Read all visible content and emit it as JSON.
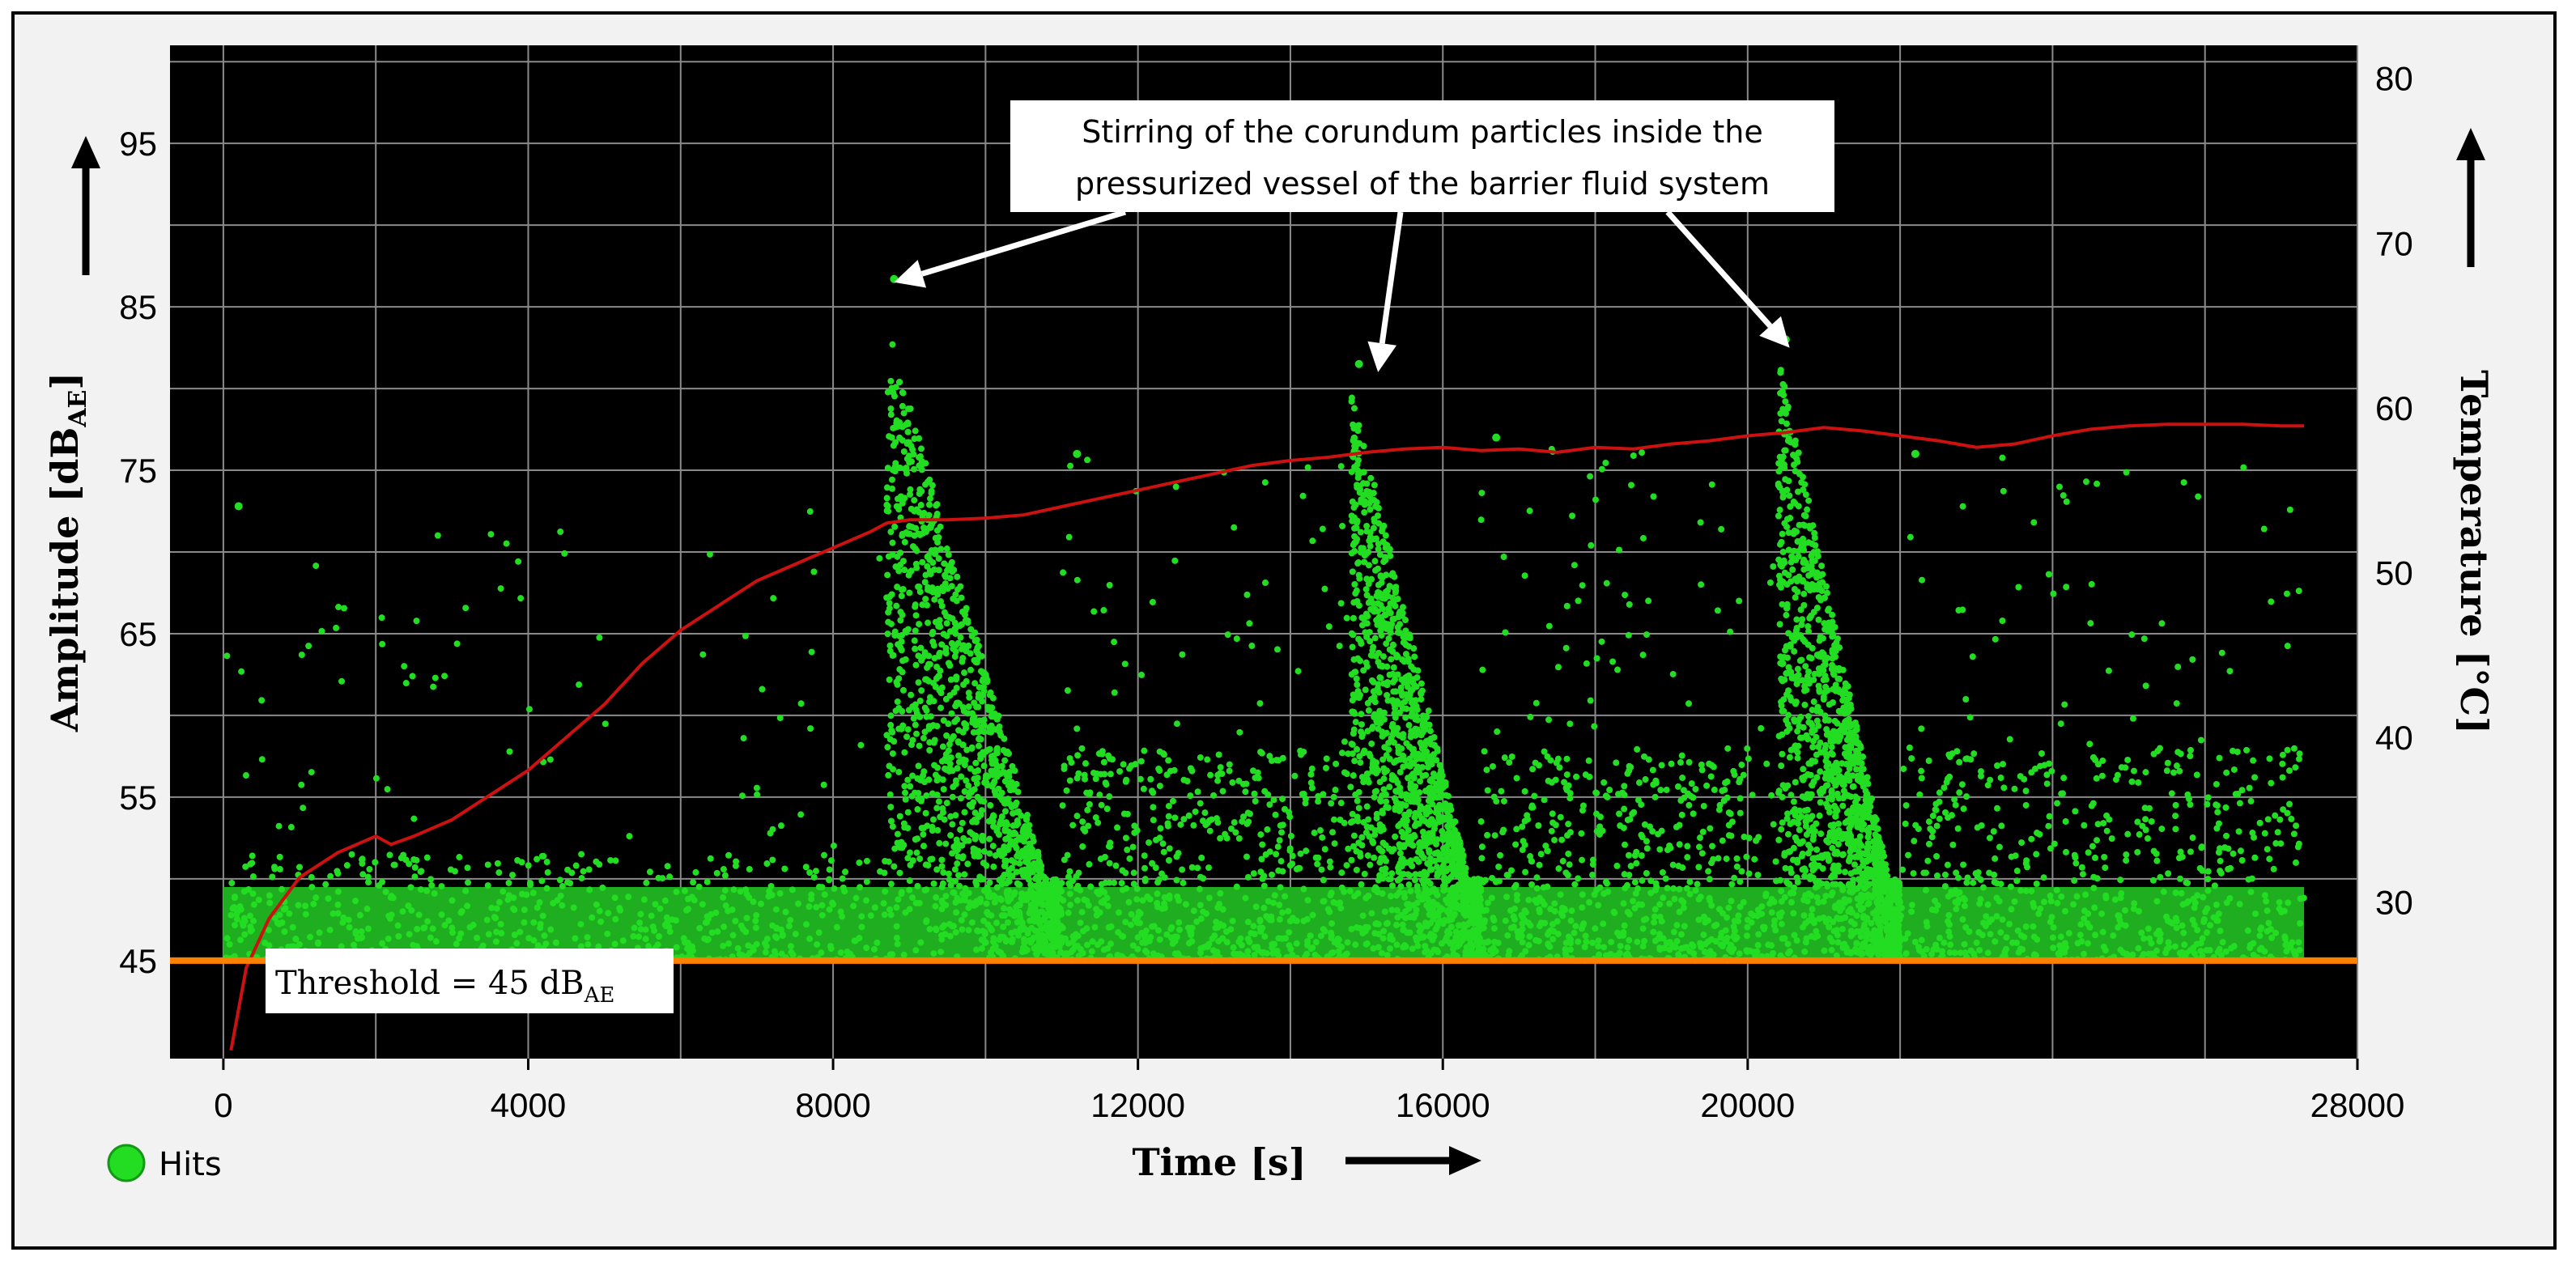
{
  "chart_data": {
    "type": "scatter",
    "xlabel": "Time [s]",
    "ylabel_left": "Amplitude [dB",
    "ylabel_left_sub": "AE",
    "ylabel_left_close": "]",
    "ylabel_right": "Temperature [°C]",
    "xlim": [
      -700,
      28000
    ],
    "ylim_left": [
      39,
      101
    ],
    "ylim_right": [
      20.5,
      82
    ],
    "x_ticks": [
      0,
      4000,
      8000,
      12000,
      16000,
      20000,
      28000
    ],
    "x_tick_labels": [
      "0",
      "4000",
      "8000",
      "12000",
      "16000",
      "20000",
      "28000"
    ],
    "y_left_ticks": [
      45,
      55,
      65,
      75,
      85,
      95
    ],
    "y_right_ticks": [
      30,
      40,
      50,
      60,
      70,
      80
    ],
    "grid": true,
    "threshold": {
      "value": 45,
      "label": "Threshold = 45 dB",
      "label_sub": "AE",
      "color": "#ff8000"
    },
    "hits_color": "#22dd22",
    "temperature_color": "#cc1111",
    "background": "#000000",
    "annotation": {
      "lines": [
        "Stirring of the corundum particles inside the",
        "pressurized vessel of the barrier fluid system"
      ],
      "arrow_targets": [
        [
          8800,
          86.5
        ],
        [
          15150,
          81
        ],
        [
          20550,
          82.5
        ]
      ]
    },
    "legend": [
      {
        "name": "Hits",
        "color": "#22dd22"
      }
    ],
    "series": [
      {
        "name": "Temperature",
        "axis": "right",
        "x": [
          100,
          300,
          600,
          1000,
          1500,
          2000,
          2200,
          2500,
          3000,
          3500,
          4000,
          4500,
          5000,
          5500,
          6000,
          6500,
          7000,
          7500,
          8000,
          8500,
          8700,
          9000,
          9500,
          10000,
          10500,
          11000,
          11500,
          12000,
          12500,
          13000,
          13500,
          14000,
          14500,
          15000,
          15500,
          16000,
          16500,
          17000,
          17500,
          18000,
          18500,
          19000,
          19500,
          20000,
          20500,
          21000,
          21500,
          22000,
          22500,
          23000,
          23500,
          24000,
          24500,
          25000,
          25500,
          26000,
          26500,
          27000,
          27300
        ],
        "y": [
          21,
          26,
          29,
          31.5,
          33,
          34,
          33.5,
          34,
          35,
          36.5,
          38,
          40,
          42,
          44.5,
          46.5,
          48,
          49.5,
          50.5,
          51.5,
          52.5,
          53,
          53.2,
          53.2,
          53.3,
          53.5,
          54,
          54.5,
          55,
          55.5,
          56,
          56.5,
          56.8,
          57,
          57.3,
          57.5,
          57.6,
          57.4,
          57.5,
          57.3,
          57.6,
          57.5,
          57.8,
          58,
          58.3,
          58.5,
          58.8,
          58.6,
          58.3,
          58,
          57.6,
          57.8,
          58.3,
          58.7,
          58.9,
          59,
          59,
          59,
          58.9,
          58.9
        ]
      },
      {
        "name": "Hits",
        "axis": "left",
        "segments": [
          {
            "x": [
              0,
              8700
            ],
            "base_max": 51.5,
            "burst_peak": 72.8
          },
          {
            "x": [
              8700,
              11000
            ],
            "base_max": 84,
            "burst_peak": 86.7
          },
          {
            "x": [
              11000,
              14800
            ],
            "base_max": 58,
            "burst_peak": 76
          },
          {
            "x": [
              14800,
              16500
            ],
            "base_max": 80,
            "burst_peak": 81.5
          },
          {
            "x": [
              16500,
              20400
            ],
            "base_max": 58,
            "burst_peak": 77
          },
          {
            "x": [
              20400,
              22000
            ],
            "base_max": 82,
            "burst_peak": 83
          },
          {
            "x": [
              22000,
              27300
            ],
            "base_max": 58,
            "burst_peak": 76
          }
        ]
      }
    ]
  }
}
